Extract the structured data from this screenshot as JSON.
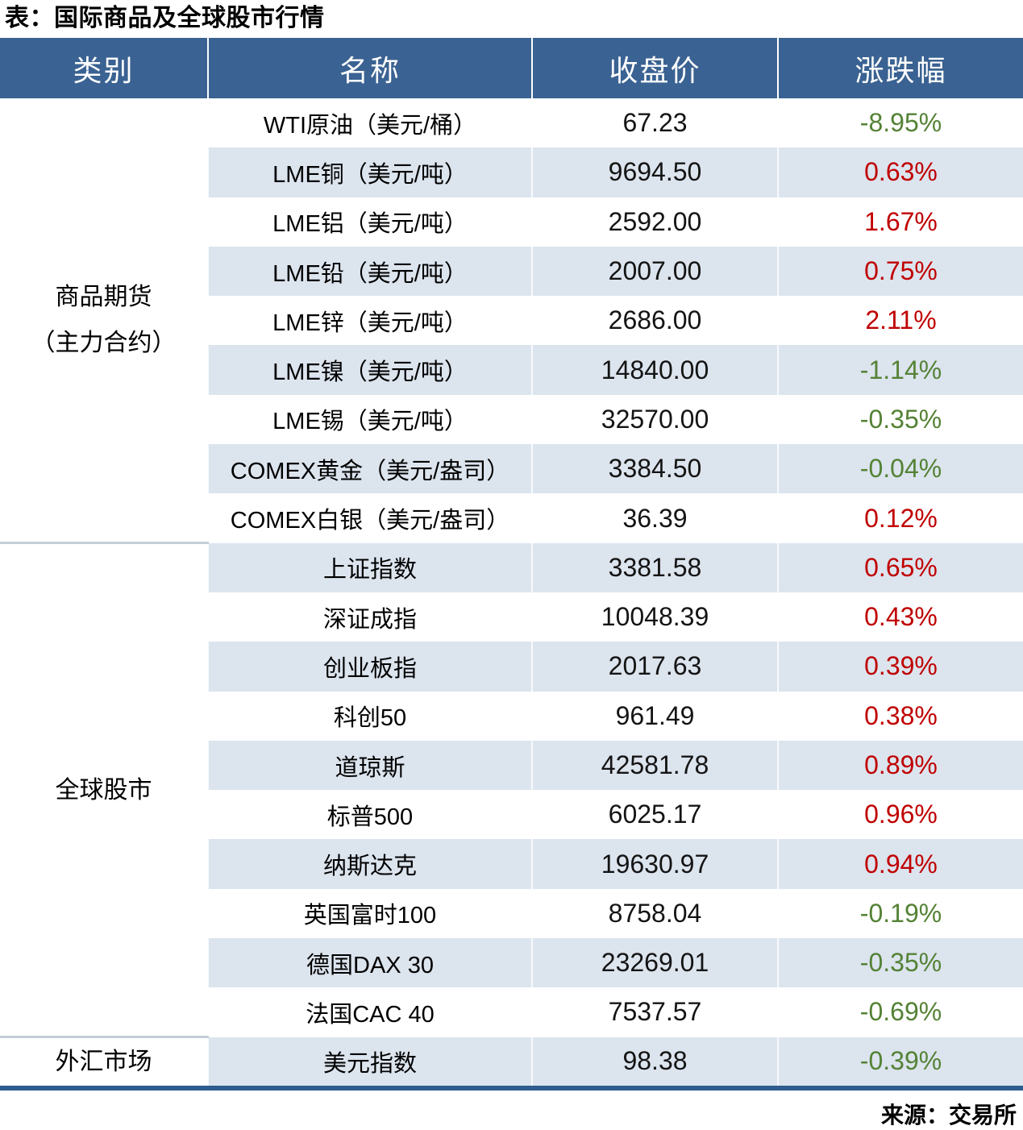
{
  "title": "表：国际商品及全球股市行情",
  "source": "来源：交易所",
  "colors": {
    "header_bg": "#3A6292",
    "stripe_bg": "#DCE4EE",
    "up_red": "#C00000",
    "down_green": "#548235",
    "bottom_border": "#2E5C8E",
    "category_divider": "#C5CDD9"
  },
  "table": {
    "headers": [
      "类别",
      "名称",
      "收盘价",
      "涨跌幅"
    ],
    "groups": [
      {
        "category": "商品期货\n（主力合约）",
        "rows": [
          {
            "name": "WTI原油（美元/桶）",
            "close": "67.23",
            "change": "-8.95%",
            "direction": "down"
          },
          {
            "name": "LME铜（美元/吨）",
            "close": "9694.50",
            "change": "0.63%",
            "direction": "up"
          },
          {
            "name": "LME铝（美元/吨）",
            "close": "2592.00",
            "change": "1.67%",
            "direction": "up"
          },
          {
            "name": "LME铅（美元/吨）",
            "close": "2007.00",
            "change": "0.75%",
            "direction": "up"
          },
          {
            "name": "LME锌（美元/吨）",
            "close": "2686.00",
            "change": "2.11%",
            "direction": "up"
          },
          {
            "name": "LME镍（美元/吨）",
            "close": "14840.00",
            "change": "-1.14%",
            "direction": "down"
          },
          {
            "name": "LME锡（美元/吨）",
            "close": "32570.00",
            "change": "-0.35%",
            "direction": "down"
          },
          {
            "name": "COMEX黄金（美元/盎司）",
            "close": "3384.50",
            "change": "-0.04%",
            "direction": "down"
          },
          {
            "name": "COMEX白银（美元/盎司）",
            "close": "36.39",
            "change": "0.12%",
            "direction": "up"
          }
        ]
      },
      {
        "category": "全球股市",
        "rows": [
          {
            "name": "上证指数",
            "close": "3381.58",
            "change": "0.65%",
            "direction": "up"
          },
          {
            "name": "深证成指",
            "close": "10048.39",
            "change": "0.43%",
            "direction": "up"
          },
          {
            "name": "创业板指",
            "close": "2017.63",
            "change": "0.39%",
            "direction": "up"
          },
          {
            "name": "科创50",
            "close": "961.49",
            "change": "0.38%",
            "direction": "up"
          },
          {
            "name": "道琼斯",
            "close": "42581.78",
            "change": "0.89%",
            "direction": "up"
          },
          {
            "name": "标普500",
            "close": "6025.17",
            "change": "0.96%",
            "direction": "up"
          },
          {
            "name": "纳斯达克",
            "close": "19630.97",
            "change": "0.94%",
            "direction": "up"
          },
          {
            "name": "英国富时100",
            "close": "8758.04",
            "change": "-0.19%",
            "direction": "down"
          },
          {
            "name": "德国DAX 30",
            "close": "23269.01",
            "change": "-0.35%",
            "direction": "down"
          },
          {
            "name": "法国CAC 40",
            "close": "7537.57",
            "change": "-0.69%",
            "direction": "down"
          }
        ]
      },
      {
        "category": "外汇市场",
        "rows": [
          {
            "name": "美元指数",
            "close": "98.38",
            "change": "-0.39%",
            "direction": "down"
          }
        ]
      }
    ]
  },
  "chart_data": {
    "type": "table",
    "title": "表：国际商品及全球股市行情",
    "source": "来源：交易所",
    "columns": [
      "类别",
      "名称",
      "收盘价",
      "涨跌幅"
    ],
    "rows": [
      [
        "商品期货（主力合约）",
        "WTI原油（美元/桶）",
        67.23,
        -8.95
      ],
      [
        "商品期货（主力合约）",
        "LME铜（美元/吨）",
        9694.5,
        0.63
      ],
      [
        "商品期货（主力合约）",
        "LME铝（美元/吨）",
        2592.0,
        1.67
      ],
      [
        "商品期货（主力合约）",
        "LME铅（美元/吨）",
        2007.0,
        0.75
      ],
      [
        "商品期货（主力合约）",
        "LME锌（美元/吨）",
        2686.0,
        2.11
      ],
      [
        "商品期货（主力合约）",
        "LME镍（美元/吨）",
        14840.0,
        -1.14
      ],
      [
        "商品期货（主力合约）",
        "LME锡（美元/吨）",
        32570.0,
        -0.35
      ],
      [
        "商品期货（主力合约）",
        "COMEX黄金（美元/盎司）",
        3384.5,
        -0.04
      ],
      [
        "商品期货（主力合约）",
        "COMEX白银（美元/盎司）",
        36.39,
        0.12
      ],
      [
        "全球股市",
        "上证指数",
        3381.58,
        0.65
      ],
      [
        "全球股市",
        "深证成指",
        10048.39,
        0.43
      ],
      [
        "全球股市",
        "创业板指",
        2017.63,
        0.39
      ],
      [
        "全球股市",
        "科创50",
        961.49,
        0.38
      ],
      [
        "全球股市",
        "道琼斯",
        42581.78,
        0.89
      ],
      [
        "全球股市",
        "标普500",
        6025.17,
        0.96
      ],
      [
        "全球股市",
        "纳斯达克",
        19630.97,
        0.94
      ],
      [
        "全球股市",
        "英国富时100",
        8758.04,
        -0.19
      ],
      [
        "全球股市",
        "德国DAX 30",
        23269.01,
        -0.35
      ],
      [
        "全球股市",
        "法国CAC 40",
        7537.57,
        -0.69
      ],
      [
        "外汇市场",
        "美元指数",
        98.38,
        -0.39
      ]
    ],
    "notes": "涨跌幅 values are percent; positive shown red (#C00000), negative shown green (#548235)"
  }
}
